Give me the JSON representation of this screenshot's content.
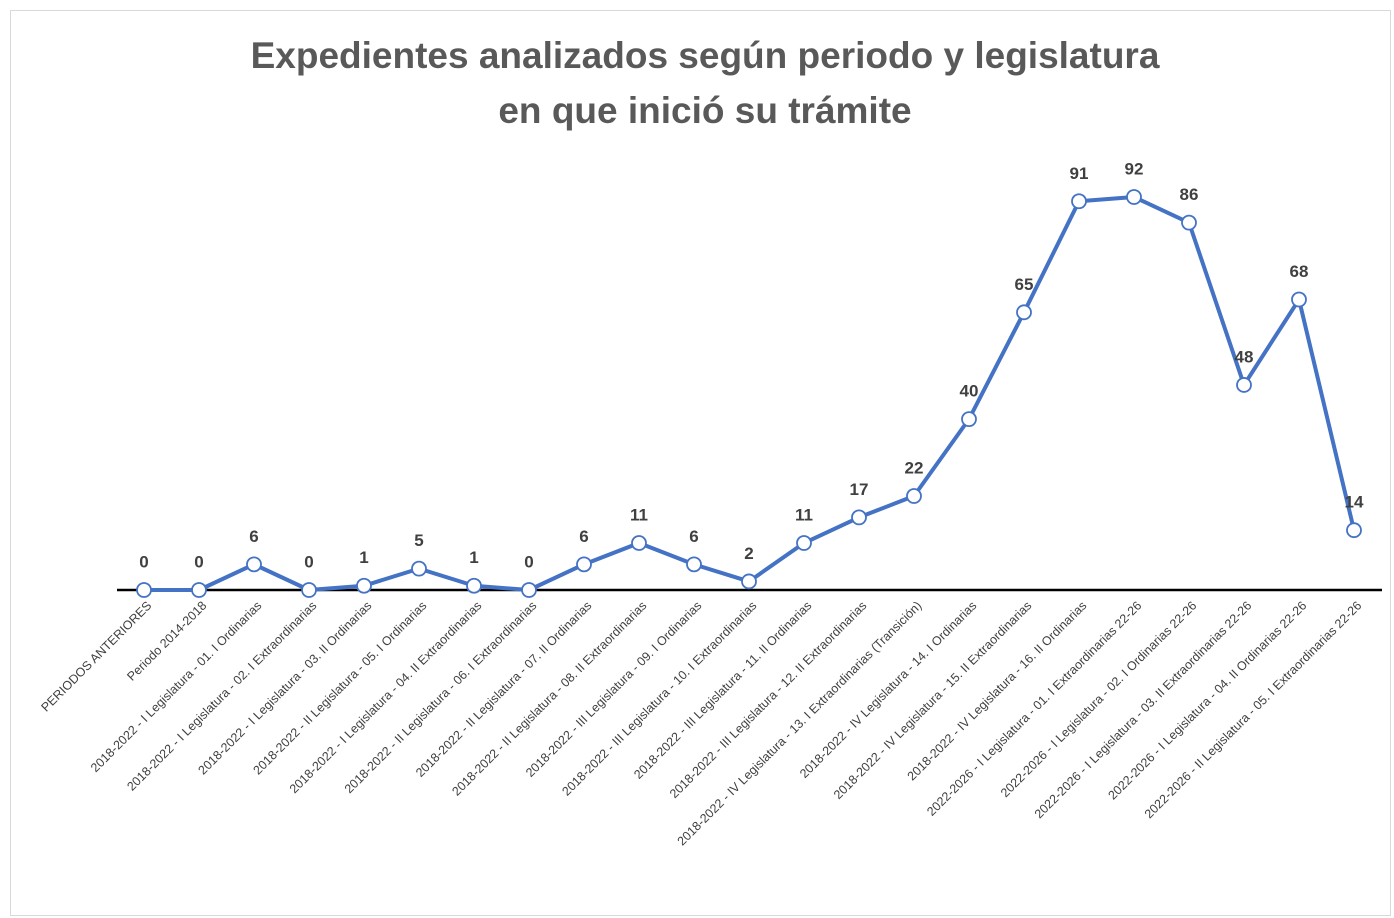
{
  "chart_data": {
    "type": "line",
    "title": [
      "Expedientes analizados según periodo y legislatura",
      "en que inició su trámite"
    ],
    "categories": [
      "PERIODOS ANTERIORES",
      "Periodo 2014-2018",
      "2018-2022 - I Legislatura - 01. I Ordinarias",
      "2018-2022 - I Legislatura - 02. I Extraordinarias",
      "2018-2022 - I Legislatura - 03. II Ordinarias",
      "2018-2022 - II Legislatura - 05. I Ordinarias",
      "2018-2022 - I Legislatura - 04. II Extraordinarias",
      "2018-2022 - II Legislatura - 06. I Extraordinarias",
      "2018-2022 - II Legislatura - 07. II Ordinarias",
      "2018-2022 - II Legislatura - 08. II Extraordinarias",
      "2018-2022 - III Legislatura - 09. I Ordinarias",
      "2018-2022 - III Legislatura - 10. I Extraordinarias",
      "2018-2022 - III Legislatura - 11. II Ordinarias",
      "2018-2022 - III Legislatura - 12. II Extraordinarias",
      "2018-2022 - IV Legislatura - 13. I Extraordinarias (Transición)",
      "2018-2022 - IV Legislatura - 14. I Ordinarias",
      "2018-2022 - IV Legislatura - 15. II Extraordinarias",
      "2018-2022 - IV Legislatura - 16. II Ordinarias",
      "2022-2026 - I Legislatura - 01. I Extraordinarias 22-26",
      "2022-2026 - I Legislatura - 02. I Ordinarias 22-26",
      "2022-2026 - I Legislatura - 03. II Extraordinarias 22-26",
      "2022-2026 - I Legislatura - 04. II Ordinarias 22-26",
      "2022-2026 - II Legislatura - 05. I Extraordinarias 22-26"
    ],
    "values": [
      0,
      0,
      6,
      0,
      1,
      5,
      1,
      0,
      6,
      11,
      6,
      2,
      11,
      17,
      22,
      40,
      65,
      91,
      92,
      86,
      48,
      68,
      14
    ],
    "color": "#4472c4"
  }
}
